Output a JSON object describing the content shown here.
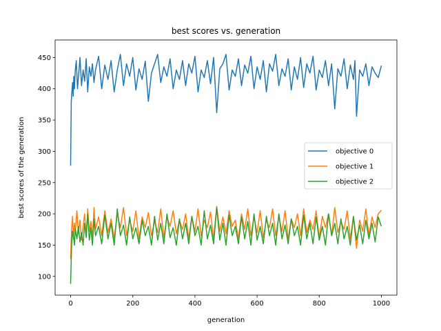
{
  "chart_data": {
    "type": "line",
    "title": "best scores vs. generation",
    "xlabel": "generation",
    "ylabel": "best scores of the generation",
    "xlim": [
      -50,
      1050
    ],
    "ylim": [
      70,
      478
    ],
    "xticks": [
      0,
      200,
      400,
      600,
      800,
      1000
    ],
    "yticks": [
      100,
      150,
      200,
      250,
      300,
      350,
      400,
      450
    ],
    "grid": false,
    "legend_position": "center-right",
    "series": [
      {
        "name": "objective 0",
        "color": "#1f77b4",
        "x": [
          0,
          2,
          4,
          6,
          8,
          10,
          12,
          15,
          18,
          22,
          26,
          30,
          35,
          40,
          45,
          50,
          55,
          60,
          65,
          70,
          75,
          80,
          90,
          100,
          110,
          120,
          130,
          140,
          150,
          160,
          170,
          180,
          190,
          200,
          210,
          220,
          230,
          240,
          250,
          260,
          270,
          280,
          290,
          300,
          310,
          320,
          330,
          340,
          350,
          360,
          370,
          380,
          390,
          400,
          410,
          420,
          430,
          440,
          450,
          460,
          470,
          480,
          490,
          500,
          510,
          520,
          530,
          540,
          550,
          560,
          570,
          580,
          590,
          600,
          610,
          620,
          630,
          640,
          650,
          660,
          670,
          680,
          690,
          700,
          710,
          720,
          730,
          740,
          750,
          760,
          770,
          780,
          790,
          800,
          810,
          820,
          830,
          840,
          850,
          860,
          870,
          880,
          890,
          900,
          910,
          915,
          920,
          930,
          940,
          950,
          960,
          970,
          980,
          990,
          1000
        ],
        "values": [
          277,
          378,
          395,
          410,
          388,
          420,
          400,
          430,
          445,
          400,
          425,
          450,
          405,
          430,
          412,
          448,
          395,
          435,
          420,
          440,
          410,
          430,
          452,
          400,
          438,
          415,
          445,
          395,
          430,
          455,
          405,
          440,
          420,
          450,
          398,
          432,
          415,
          444,
          380,
          425,
          440,
          455,
          410,
          435,
          420,
          448,
          400,
          430,
          415,
          445,
          405,
          440,
          425,
          452,
          395,
          430,
          418,
          445,
          408,
          450,
          362,
          432,
          440,
          455,
          398,
          430,
          420,
          448,
          405,
          438,
          425,
          452,
          400,
          435,
          415,
          445,
          395,
          440,
          428,
          455,
          405,
          432,
          420,
          448,
          398,
          435,
          415,
          450,
          402,
          440,
          425,
          452,
          398,
          430,
          418,
          445,
          405,
          440,
          368,
          432,
          420,
          448,
          400,
          438,
          415,
          445,
          356,
          430,
          420,
          440,
          405,
          435,
          425,
          418,
          437
        ]
      },
      {
        "name": "objective 1",
        "color": "#ff7f0e",
        "x": [
          0,
          3,
          6,
          9,
          12,
          15,
          20,
          25,
          30,
          35,
          40,
          45,
          50,
          55,
          60,
          65,
          70,
          75,
          80,
          90,
          100,
          110,
          120,
          130,
          140,
          150,
          160,
          170,
          180,
          190,
          200,
          210,
          220,
          230,
          240,
          250,
          260,
          270,
          280,
          290,
          300,
          310,
          320,
          330,
          340,
          350,
          360,
          370,
          380,
          390,
          400,
          410,
          420,
          430,
          440,
          450,
          460,
          470,
          480,
          490,
          500,
          510,
          520,
          530,
          540,
          550,
          560,
          570,
          580,
          590,
          600,
          610,
          620,
          630,
          640,
          650,
          660,
          670,
          680,
          690,
          700,
          710,
          720,
          730,
          740,
          750,
          760,
          770,
          780,
          790,
          800,
          810,
          820,
          830,
          840,
          850,
          860,
          870,
          880,
          890,
          900,
          910,
          920,
          930,
          940,
          950,
          960,
          970,
          980,
          990,
          1000
        ],
        "values": [
          128,
          175,
          196,
          160,
          185,
          172,
          205,
          168,
          190,
          158,
          180,
          200,
          165,
          208,
          172,
          188,
          160,
          210,
          175,
          195,
          165,
          205,
          170,
          192,
          160,
          200,
          178,
          210,
          165,
          190,
          172,
          205,
          160,
          195,
          178,
          202,
          165,
          188,
          170,
          208,
          162,
          195,
          180,
          205,
          168,
          190,
          175,
          200,
          160,
          196,
          172,
          208,
          165,
          190,
          178,
          203,
          160,
          212,
          172,
          195,
          168,
          205,
          180,
          190,
          160,
          200,
          175,
          208,
          165,
          195,
          170,
          205,
          162,
          190,
          178,
          208,
          165,
          196,
          172,
          205,
          160,
          192,
          178,
          200,
          165,
          208,
          170,
          190,
          175,
          205,
          162,
          196,
          178,
          200,
          165,
          210,
          170,
          188,
          175,
          205,
          160,
          195,
          145,
          190,
          172,
          208,
          165,
          195,
          178,
          200,
          206
        ]
      },
      {
        "name": "objective 2",
        "color": "#2ca02c",
        "x": [
          0,
          3,
          6,
          9,
          12,
          15,
          20,
          25,
          30,
          35,
          40,
          45,
          50,
          55,
          60,
          65,
          70,
          75,
          80,
          90,
          100,
          110,
          120,
          130,
          140,
          150,
          160,
          170,
          180,
          190,
          200,
          210,
          220,
          230,
          240,
          250,
          260,
          270,
          280,
          290,
          300,
          310,
          320,
          330,
          340,
          350,
          360,
          370,
          380,
          390,
          400,
          410,
          420,
          430,
          440,
          450,
          460,
          470,
          480,
          490,
          500,
          510,
          520,
          530,
          540,
          550,
          560,
          570,
          580,
          590,
          600,
          610,
          620,
          630,
          640,
          650,
          660,
          670,
          680,
          690,
          700,
          710,
          720,
          730,
          740,
          750,
          760,
          770,
          780,
          790,
          800,
          810,
          820,
          830,
          840,
          850,
          860,
          870,
          880,
          890,
          900,
          910,
          920,
          930,
          940,
          950,
          960,
          970,
          980,
          990,
          1000
        ],
        "values": [
          88,
          150,
          172,
          165,
          150,
          176,
          160,
          180,
          155,
          170,
          150,
          185,
          162,
          200,
          158,
          178,
          150,
          192,
          165,
          180,
          152,
          198,
          160,
          185,
          150,
          208,
          165,
          182,
          150,
          195,
          160,
          178,
          152,
          190,
          165,
          180,
          150,
          196,
          158,
          185,
          152,
          200,
          162,
          178,
          150,
          192,
          160,
          185,
          152,
          196,
          165,
          180,
          150,
          205,
          160,
          182,
          152,
          210,
          158,
          185,
          150,
          198,
          165,
          180,
          152,
          195,
          160,
          188,
          150,
          200,
          158,
          180,
          152,
          196,
          165,
          185,
          150,
          200,
          160,
          182,
          152,
          192,
          165,
          180,
          150,
          198,
          160,
          185,
          152,
          195,
          158,
          180,
          150,
          200,
          165,
          185,
          152,
          192,
          160,
          180,
          150,
          196,
          158,
          182,
          152,
          190,
          160,
          185,
          155,
          195,
          180
        ]
      }
    ]
  }
}
